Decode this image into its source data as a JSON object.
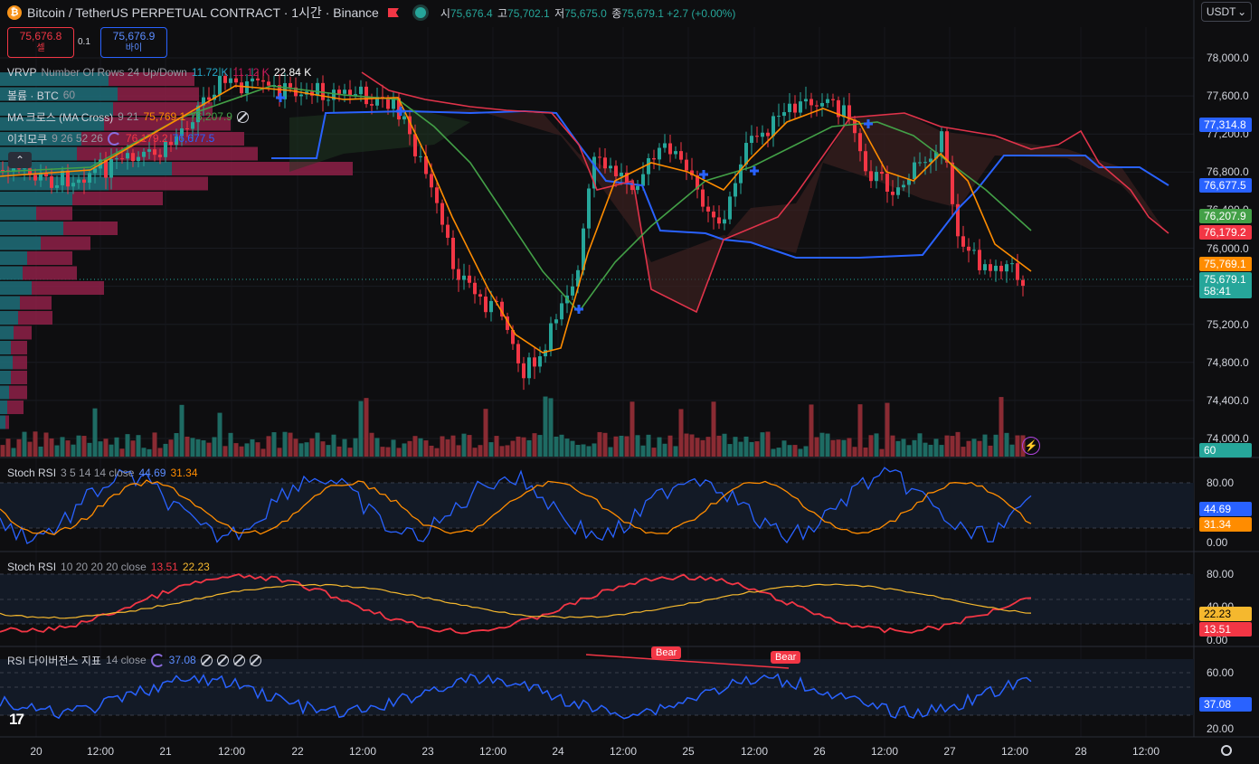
{
  "header": {
    "symbol_icon": "bitcoin-icon",
    "title": "Bitcoin / TetherUS PERPETUAL CONTRACT · 1시간 · Binance",
    "ohlc": [
      {
        "k": "시",
        "v": "75,676.4"
      },
      {
        "k": "고",
        "v": "75,702.1"
      },
      {
        "k": "저",
        "v": "75,675.0"
      },
      {
        "k": "종",
        "v": "75,679.1"
      }
    ],
    "change": "+2.7 (+0.00%)"
  },
  "trade": {
    "sell_price": "75,676.8",
    "sell_label": "셀",
    "spread": "0.1",
    "buy_price": "75,676.9",
    "buy_label": "바이"
  },
  "currency": "USDT",
  "legends": {
    "vrvp": {
      "name": "VRVP",
      "params": "Number Of Rows 24 Up/Down",
      "v1": "11.72 K",
      "v2": "11.12 K",
      "v3": "22.84 K"
    },
    "volume": {
      "name": "볼륨 · BTC",
      "params": "60"
    },
    "ma": {
      "name": "MA 크로스 (MA Cross)",
      "params": "9 21",
      "v1": "75,769.1",
      "v2": "76,207.9"
    },
    "ichimoku": {
      "name": "이치모쿠",
      "params": "9 26 52 26",
      "v1": "76,179.2",
      "v2": "76,677.5"
    },
    "stoch1": {
      "name": "Stoch RSI",
      "params": "3 5 14 14 close",
      "v1": "44.69",
      "v2": "31.34"
    },
    "stoch2": {
      "name": "Stoch RSI",
      "params": "10 20 20 20 close",
      "v1": "13.51",
      "v2": "22.23"
    },
    "rsi": {
      "name": "RSI 다이버전스 지표",
      "params": "14 close",
      "v1": "37.08"
    }
  },
  "price_axis": [
    "78,000.0",
    "77,600.0",
    "77,200.0",
    "76,800.0",
    "76,400.0",
    "76,000.0",
    "75,600.0",
    "75,200.0",
    "74,800.0",
    "74,400.0",
    "74,000.0"
  ],
  "price_tags": [
    {
      "text": "77,314.8",
      "color": "#2962ff"
    },
    {
      "text": "76,677.5",
      "color": "#2962ff"
    },
    {
      "text": "76,207.9",
      "color": "#43a047"
    },
    {
      "text": "76,179.2",
      "color": "#f23645"
    },
    {
      "text": "75,769.1",
      "color": "#ff8c00"
    },
    {
      "text": "75,679.1",
      "color": "#26a69a"
    },
    {
      "text": "58:41",
      "color": "#26a69a"
    },
    {
      "text": "60",
      "color": "#26a69a"
    }
  ],
  "stoch_axis": [
    "80.00",
    "0.00"
  ],
  "stoch1_tags": [
    {
      "text": "44.69",
      "color": "#2962ff"
    },
    {
      "text": "31.34",
      "color": "#ff8c00"
    }
  ],
  "stoch2_axis": [
    "80.00",
    "40.00",
    "0.00"
  ],
  "stoch2_tags": [
    {
      "text": "22.23",
      "color": "#f5b82e"
    },
    {
      "text": "13.51",
      "color": "#f23645"
    }
  ],
  "rsi_axis": [
    "60.00",
    "20.00"
  ],
  "rsi_tags": [
    {
      "text": "37.08",
      "color": "#2962ff"
    }
  ],
  "divergence": [
    "Bear",
    "Bear"
  ],
  "time_axis": [
    "20",
    "12:00",
    "21",
    "12:00",
    "22",
    "12:00",
    "23",
    "12:00",
    "24",
    "12:00",
    "25",
    "12:00",
    "26",
    "12:00",
    "27",
    "12:00",
    "28",
    "12:00"
  ],
  "icons": {
    "logo": "tradingview-logo",
    "settings": "gear-icon",
    "alert": "lightning-icon",
    "collapse": "chevron-up-icon"
  },
  "colors": {
    "up": "#26a69a",
    "down": "#f23645",
    "ma_fast": "#ff8c00",
    "ma_slow": "#43a047",
    "kijun": "#2962ff",
    "tenkan": "#f23645",
    "stoch_k": "#2962ff",
    "stoch_d": "#ff8c00",
    "rsi": "#2962ff"
  }
}
